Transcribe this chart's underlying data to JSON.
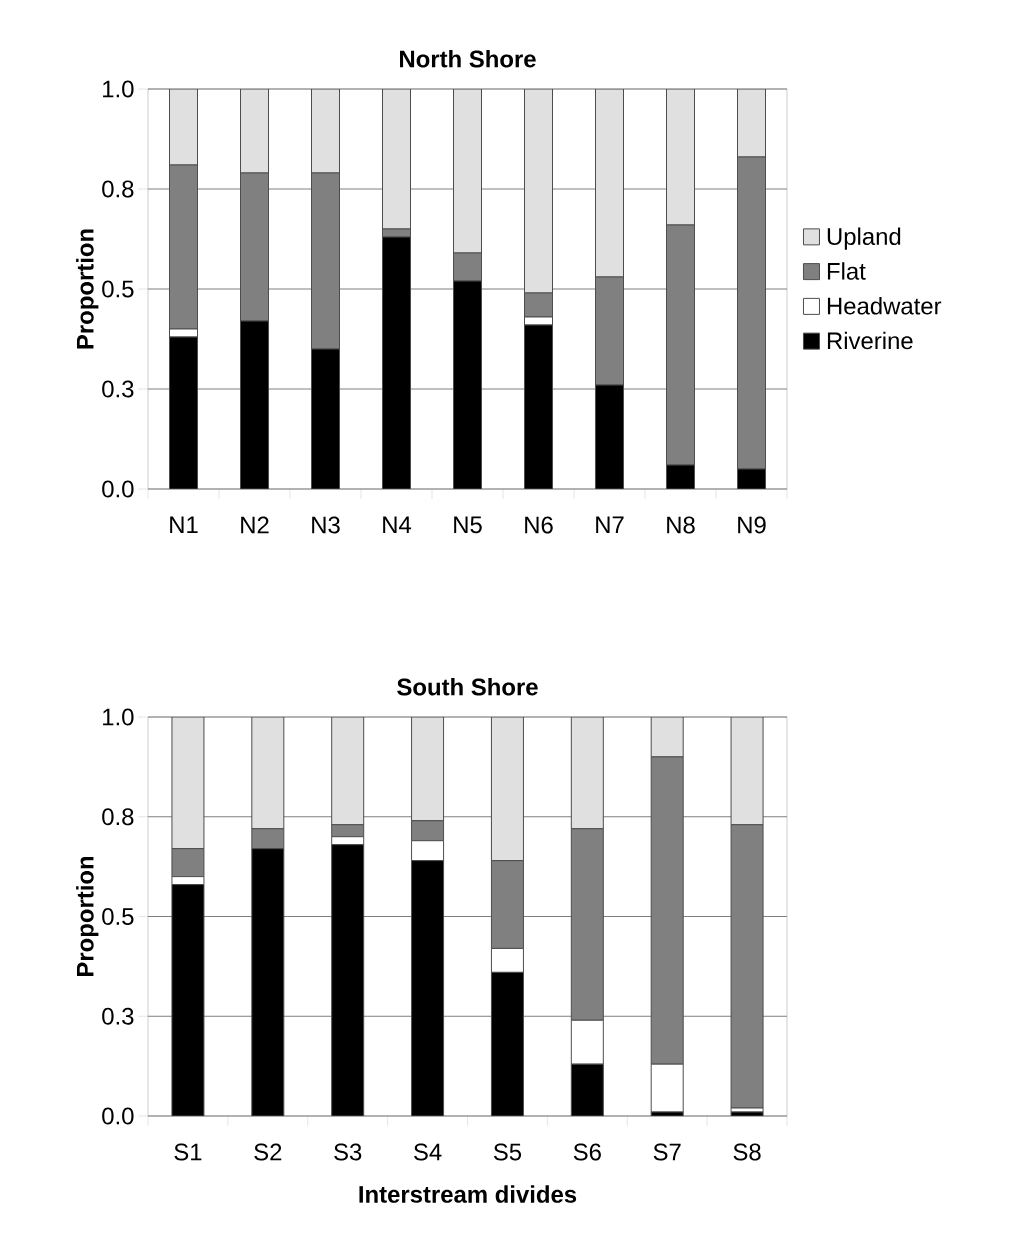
{
  "chart_data": [
    {
      "type": "bar",
      "title": "North Shore",
      "ylabel": "Proportion",
      "stacked": true,
      "legend": "right",
      "grid": "y",
      "categories": [
        "N1",
        "N2",
        "N3",
        "N4",
        "N5",
        "N6",
        "N7",
        "N8",
        "N9"
      ],
      "ylim": [
        0,
        1
      ],
      "yticks": [
        {
          "value": 0,
          "label": "0.0"
        },
        {
          "value": 0.25,
          "label": "0.3"
        },
        {
          "value": 0.5,
          "label": "0.5"
        },
        {
          "value": 0.75,
          "label": "0.8"
        },
        {
          "value": 1,
          "label": "1.0"
        }
      ],
      "series": [
        {
          "name": "Riverine",
          "color": "#000000",
          "values": [
            0.38,
            0.42,
            0.35,
            0.63,
            0.52,
            0.41,
            0.26,
            0.06,
            0.05
          ]
        },
        {
          "name": "Headwater",
          "color": "#ffffff",
          "values": [
            0.02,
            0,
            0,
            0,
            0,
            0.02,
            0,
            0,
            0
          ]
        },
        {
          "name": "Flat",
          "color": "#808080",
          "values": [
            0.41,
            0.37,
            0.44,
            0.02,
            0.07,
            0.06,
            0.27,
            0.6,
            0.78
          ]
        },
        {
          "name": "Upland",
          "color": "#e0e0e0",
          "values": [
            0.19,
            0.21,
            0.21,
            0.35,
            0.41,
            0.51,
            0.47,
            0.34,
            0.17
          ]
        }
      ]
    },
    {
      "type": "bar",
      "title": "South Shore",
      "ylabel": "Proportion",
      "xlabel": "Interstream divides",
      "stacked": true,
      "grid": "y",
      "categories": [
        "S1",
        "S2",
        "S3",
        "S4",
        "S5",
        "S6",
        "S7",
        "S8"
      ],
      "ylim": [
        0,
        1
      ],
      "yticks": [
        {
          "value": 0,
          "label": "0.0"
        },
        {
          "value": 0.25,
          "label": "0.3"
        },
        {
          "value": 0.5,
          "label": "0.5"
        },
        {
          "value": 0.75,
          "label": "0.8"
        },
        {
          "value": 1,
          "label": "1.0"
        }
      ],
      "series": [
        {
          "color": "#000000",
          "values": [
            0.58,
            0.67,
            0.68,
            0.64,
            0.36,
            0.13,
            0.01,
            0.01
          ]
        },
        {
          "color": "#ffffff",
          "values": [
            0.02,
            0,
            0.02,
            0.05,
            0.06,
            0.11,
            0.12,
            0.01
          ]
        },
        {
          "color": "#808080",
          "values": [
            0.07,
            0.05,
            0.03,
            0.05,
            0.22,
            0.48,
            0.77,
            0.71
          ]
        },
        {
          "color": "#e0e0e0",
          "values": [
            0.33,
            0.28,
            0.27,
            0.26,
            0.36,
            0.28,
            0.1,
            0.27
          ]
        }
      ]
    }
  ]
}
